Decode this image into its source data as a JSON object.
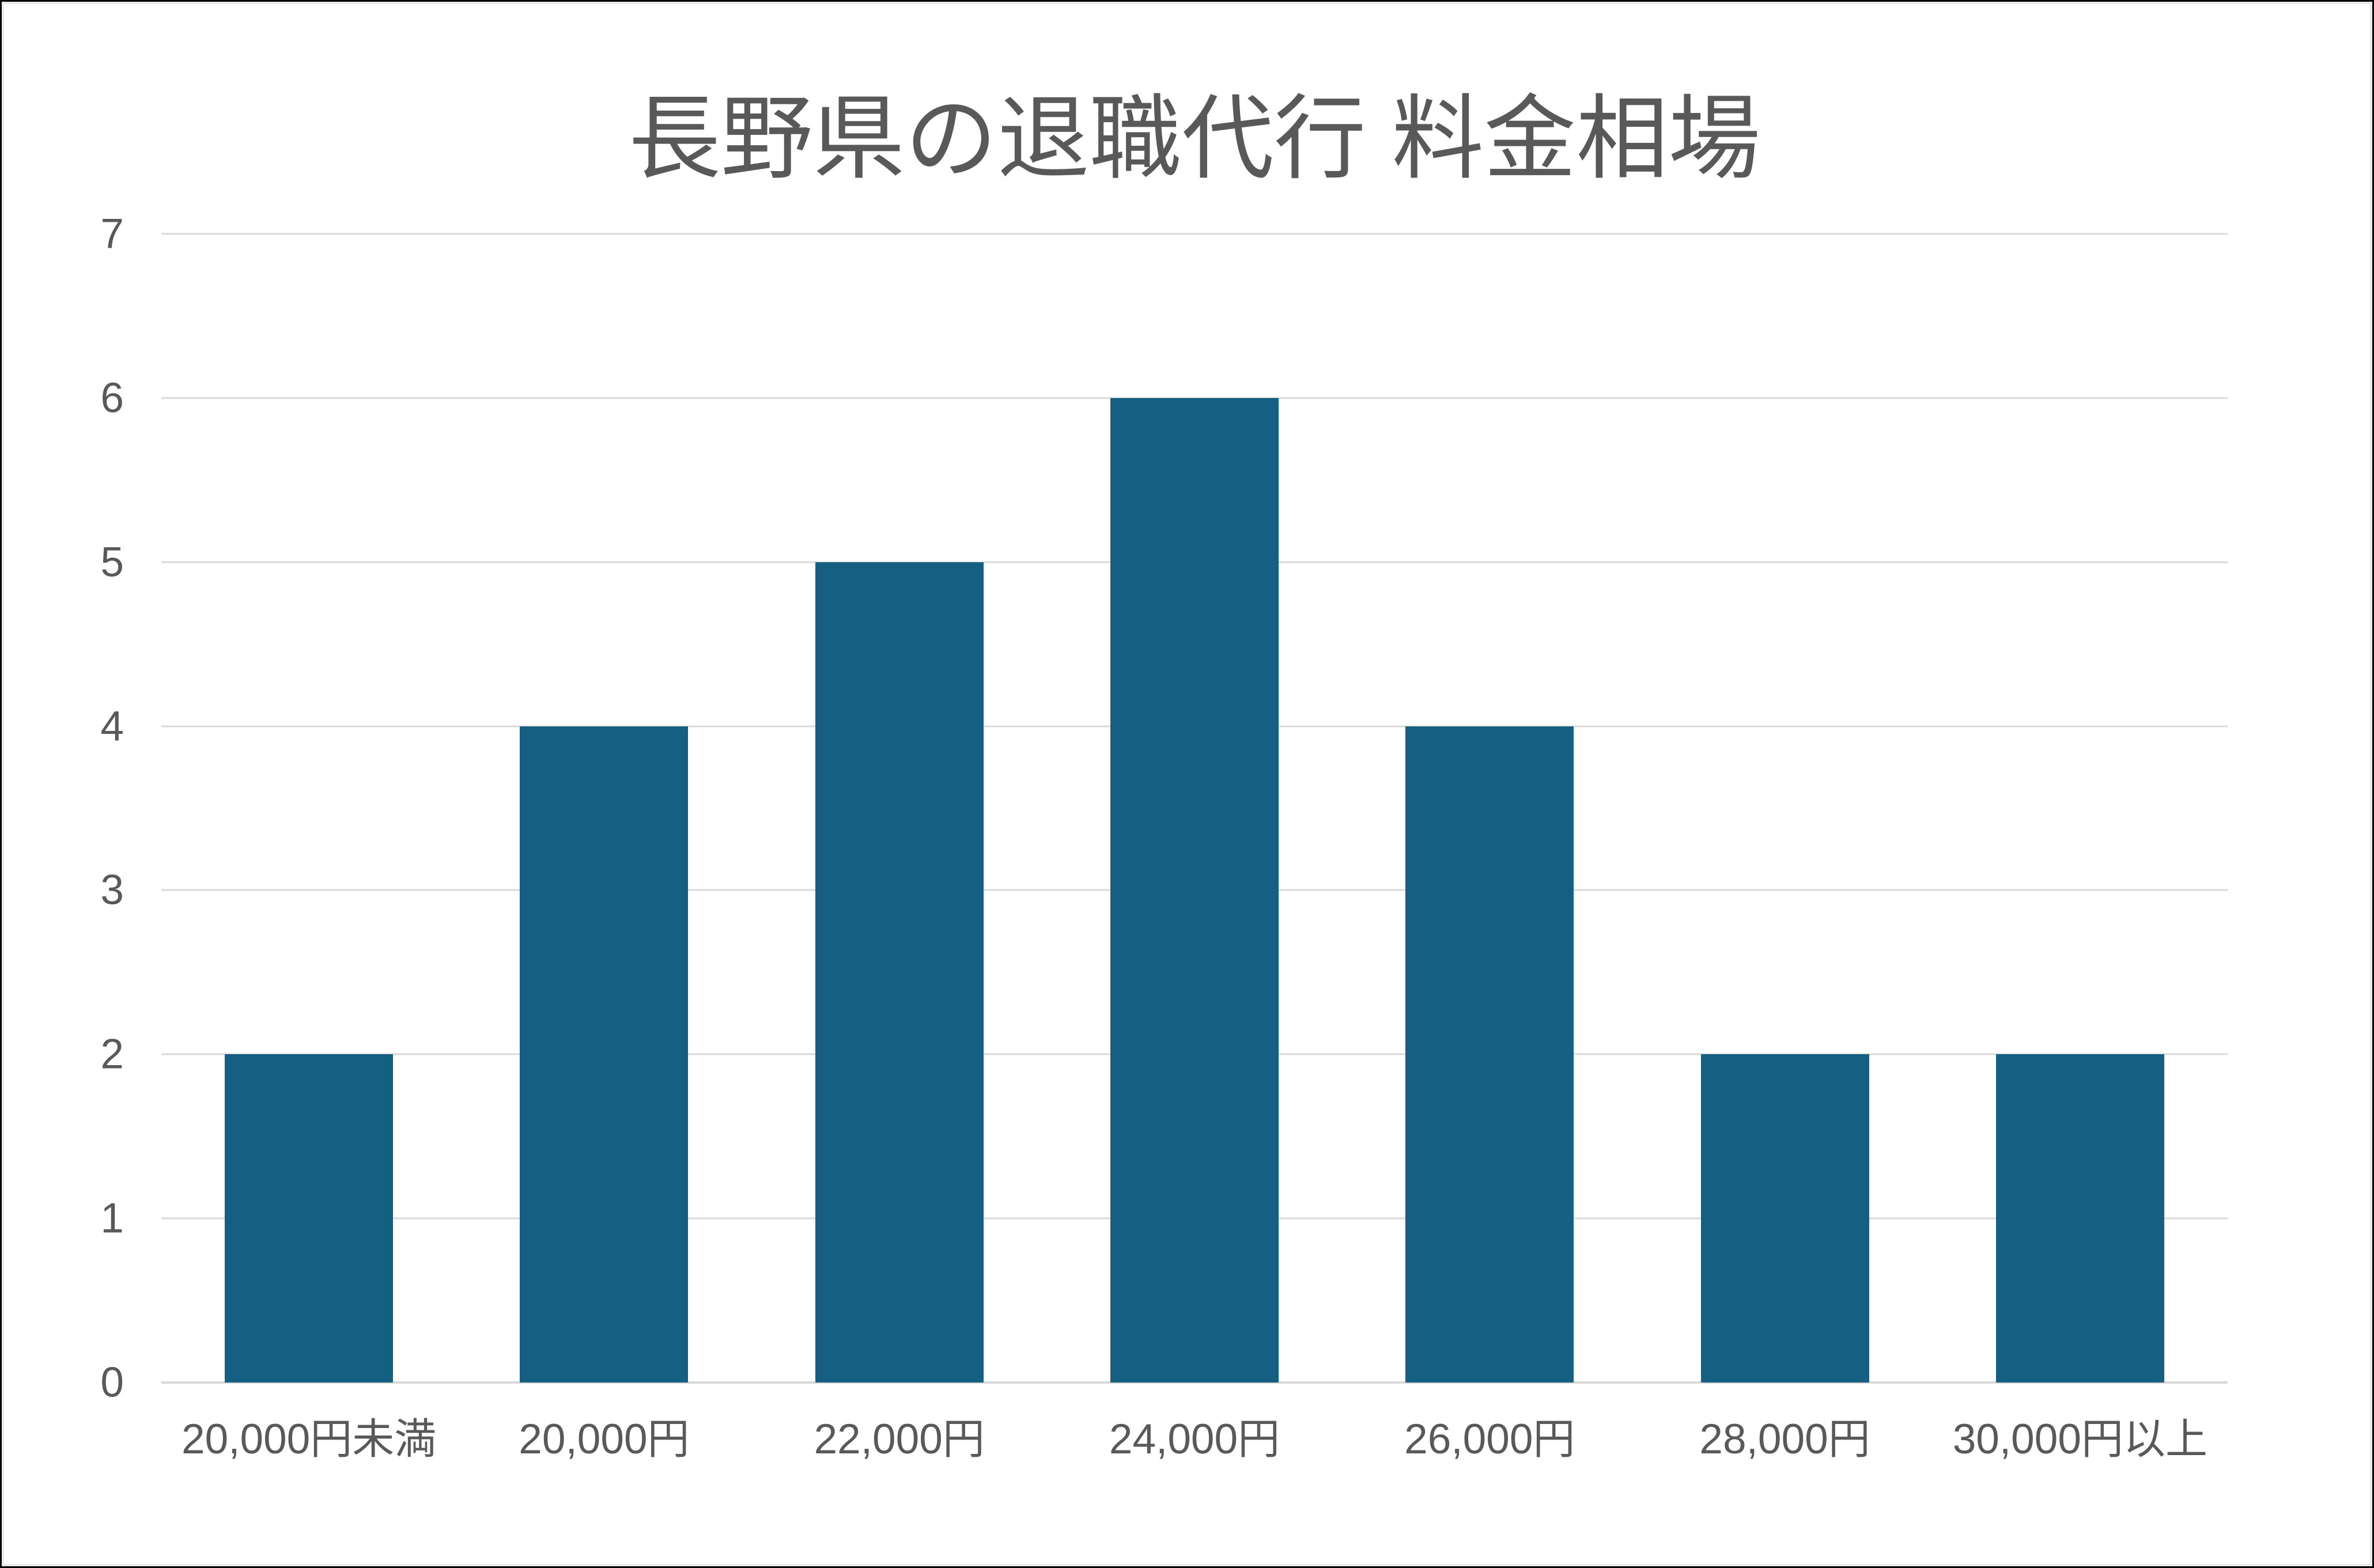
{
  "chart_data": {
    "type": "bar",
    "title": "長野県の退職代行 料金相場",
    "categories": [
      "20,000円未満",
      "20,000円",
      "22,000円",
      "24,000円",
      "26,000円",
      "28,000円",
      "30,000円以上"
    ],
    "values": [
      2,
      4,
      5,
      6,
      4,
      2,
      2
    ],
    "xlabel": "",
    "ylabel": "",
    "ylim": [
      0,
      7
    ],
    "yticks": [
      0,
      1,
      2,
      3,
      4,
      5,
      6,
      7
    ],
    "grid": true,
    "legend": false,
    "colors": {
      "bar_fill": "#156082",
      "text": "#595959",
      "gridline": "#d9d9d9",
      "background": "#ffffff",
      "frame_border": "#000000"
    }
  }
}
